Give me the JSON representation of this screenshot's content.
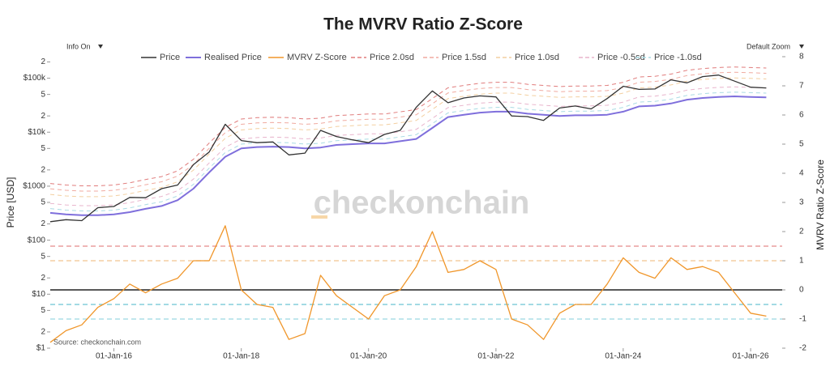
{
  "chart_data": {
    "type": "line",
    "title": "The MVRV Ratio Z-Score",
    "controls": {
      "left": "Info On",
      "right": "Default Zoom"
    },
    "ylabel": "Price [USD]",
    "y2label": "MVRV Ratio Z-Score",
    "watermark": "checkonchain",
    "source": "Source:  checkonchain.com",
    "yscale": "log",
    "x": [
      "2015-01-01",
      "2015-04-01",
      "2015-07-01",
      "2015-10-01",
      "2016-01-01",
      "2016-04-01",
      "2016-07-01",
      "2016-10-01",
      "2017-01-01",
      "2017-04-01",
      "2017-07-01",
      "2017-10-01",
      "2018-01-01",
      "2018-04-01",
      "2018-07-01",
      "2018-10-01",
      "2019-01-01",
      "2019-04-01",
      "2019-07-01",
      "2019-10-01",
      "2020-01-01",
      "2020-04-01",
      "2020-07-01",
      "2020-10-01",
      "2021-01-01",
      "2021-04-01",
      "2021-07-01",
      "2021-10-01",
      "2022-01-01",
      "2022-04-01",
      "2022-07-01",
      "2022-10-01",
      "2023-01-01",
      "2023-04-01",
      "2023-07-01",
      "2023-10-01",
      "2024-01-01",
      "2024-04-01",
      "2024-07-01",
      "2024-10-01",
      "2025-01-01",
      "2025-04-01",
      "2025-07-01",
      "2025-10-01",
      "2026-01-01",
      "2026-04-01"
    ],
    "xlim": [
      "2015-01-01",
      "2026-07-01"
    ],
    "xticks": [
      {
        "value": "2016-01-01",
        "label": "01-Jan-16"
      },
      {
        "value": "2018-01-01",
        "label": "01-Jan-18"
      },
      {
        "value": "2020-01-01",
        "label": "01-Jan-20"
      },
      {
        "value": "2022-01-01",
        "label": "01-Jan-22"
      },
      {
        "value": "2024-01-01",
        "label": "01-Jan-24"
      },
      {
        "value": "2026-01-01",
        "label": "01-Jan-26"
      }
    ],
    "ylim": [
      1,
      250000
    ],
    "yticks": [
      {
        "value": 1,
        "label": "$1"
      },
      2,
      5,
      {
        "value": 10,
        "label": "$10"
      },
      {
        "value": 20,
        "label": "2"
      },
      {
        "value": 50,
        "label": "5"
      },
      {
        "value": 100,
        "label": "$100"
      },
      {
        "value": 200,
        "label": "2"
      },
      {
        "value": 500,
        "label": "5"
      },
      {
        "value": 1000,
        "label": "$1000"
      },
      {
        "value": 2000,
        "label": "2"
      },
      {
        "value": 5000,
        "label": "5"
      },
      {
        "value": 10000,
        "label": "$10k"
      },
      {
        "value": 20000,
        "label": "2"
      },
      {
        "value": 50000,
        "label": "5"
      },
      {
        "value": 100000,
        "label": "$100k"
      },
      {
        "value": 200000,
        "label": "2"
      }
    ],
    "y2lim": [
      -2,
      8
    ],
    "y2ticks": [
      -2,
      -1,
      0,
      1,
      2,
      3,
      4,
      5,
      6,
      7,
      8
    ],
    "reference_lines": [
      {
        "value": 1.5,
        "color": "#e58a8a",
        "style": "dashed"
      },
      {
        "value": 1.0,
        "color": "#f2c48f",
        "style": "dashed"
      },
      {
        "value": 0,
        "color": "#222222",
        "style": "solid"
      },
      {
        "value": -0.5,
        "color": "#6cc4d4",
        "style": "dashed"
      },
      {
        "value": -1.0,
        "color": "#9ad8e2",
        "style": "dashed"
      }
    ],
    "series": [
      {
        "name": "Price",
        "color": "#333333",
        "style": "solid",
        "values": [
          220,
          240,
          230,
          400,
          420,
          620,
          610,
          900,
          1050,
          2500,
          4300,
          14000,
          7000,
          6400,
          6600,
          3800,
          4100,
          10800,
          8300,
          7200,
          6400,
          9100,
          10800,
          29000,
          58000,
          35000,
          43000,
          47000,
          45000,
          20000,
          19400,
          16500,
          28000,
          30500,
          27000,
          42000,
          71000,
          62000,
          63000,
          93000,
          82000,
          107000,
          114000,
          88000,
          68000,
          66000
        ]
      },
      {
        "name": "Realised Price",
        "color": "#7f6fdc",
        "style": "solid",
        "values": [
          320,
          300,
          290,
          290,
          300,
          330,
          380,
          430,
          550,
          900,
          1800,
          3500,
          5000,
          5300,
          5400,
          5300,
          5000,
          5200,
          5800,
          6000,
          6200,
          6200,
          6800,
          7500,
          12000,
          19000,
          21000,
          23000,
          24000,
          24000,
          22000,
          21000,
          20000,
          20500,
          20500,
          21000,
          24000,
          30000,
          31000,
          34000,
          40000,
          43000,
          45000,
          46000,
          45000,
          44000
        ]
      },
      {
        "name": "MVRV Z-Score",
        "color": "#f0962a",
        "style": "solid",
        "axis": "y2",
        "values": [
          -1.8,
          -1.4,
          -1.2,
          -0.6,
          -0.3,
          0.2,
          -0.1,
          0.2,
          0.4,
          1.0,
          1.0,
          2.2,
          0.0,
          -0.5,
          -0.6,
          -1.7,
          -1.5,
          0.5,
          -0.2,
          -0.6,
          -1.0,
          -0.2,
          0.0,
          0.8,
          2.0,
          0.6,
          0.7,
          1.0,
          0.7,
          -1.0,
          -1.2,
          -1.7,
          -0.8,
          -0.5,
          -0.5,
          0.2,
          1.1,
          0.6,
          0.4,
          1.1,
          0.7,
          0.8,
          0.6,
          -0.1,
          -0.8,
          -0.9
        ]
      },
      {
        "name": "Price 2.0sd",
        "color": "#e07b7b",
        "style": "dashed",
        "values": [
          1120,
          1050,
          1015,
          1015,
          1050,
          1155,
          1330,
          1505,
          1925,
          3150,
          6300,
          12250,
          17500,
          18550,
          18900,
          18550,
          17500,
          18200,
          20300,
          21000,
          21700,
          21700,
          23800,
          26250,
          42000,
          66500,
          73500,
          80500,
          84000,
          84000,
          77000,
          73500,
          70000,
          71750,
          71750,
          73500,
          84000,
          105000,
          108500,
          119000,
          140000,
          150500,
          157500,
          161000,
          157500,
          154000
        ]
      },
      {
        "name": "Price 1.5sd",
        "color": "#f0aaa0",
        "style": "dashed",
        "values": [
          896,
          840,
          812,
          812,
          840,
          924,
          1064,
          1204,
          1540,
          2520,
          5040,
          9800,
          14000,
          14840,
          15120,
          14840,
          14000,
          14560,
          16240,
          16800,
          17360,
          17360,
          19040,
          21000,
          33600,
          53200,
          58800,
          64400,
          67200,
          67200,
          61600,
          58800,
          56000,
          57400,
          57400,
          58800,
          67200,
          84000,
          86800,
          95200,
          112000,
          120400,
          126000,
          128800,
          126000,
          123200
        ]
      },
      {
        "name": "Price 1.0sd",
        "color": "#f3cfa0",
        "style": "dashed",
        "values": [
          704,
          660,
          638,
          638,
          660,
          726,
          836,
          946,
          1210,
          1980,
          3960,
          7700,
          11000,
          11660,
          11880,
          11660,
          11000,
          11440,
          12760,
          13200,
          13640,
          13640,
          14960,
          16500,
          26400,
          41800,
          46200,
          50600,
          52800,
          52800,
          48400,
          46200,
          44000,
          45100,
          45100,
          46200,
          52800,
          66000,
          68200,
          74800,
          88000,
          94600,
          99000,
          101200,
          99000,
          96800
        ]
      },
      {
        "name": "Price -0.5sd",
        "color": "#e8b4cc",
        "style": "dashed",
        "values": [
          480,
          450,
          435,
          435,
          450,
          495,
          570,
          645,
          825,
          1350,
          2700,
          5250,
          7500,
          7950,
          8100,
          7950,
          7500,
          7800,
          8700,
          9000,
          9300,
          9300,
          10200,
          11250,
          18000,
          28500,
          31500,
          34500,
          36000,
          36000,
          33000,
          31500,
          30000,
          30750,
          30750,
          31500,
          36000,
          45000,
          46500,
          51000,
          60000,
          64500,
          67500,
          69000,
          67500,
          66000
        ]
      },
      {
        "name": "Price -1.0sd",
        "color": "#a9dbe3",
        "style": "dashed",
        "values": [
          384,
          360,
          348,
          348,
          360,
          396,
          456,
          516,
          660,
          1080,
          2160,
          4200,
          6000,
          6360,
          6480,
          6360,
          6000,
          6240,
          6960,
          7200,
          7440,
          7440,
          8160,
          9000,
          14400,
          22800,
          25200,
          27600,
          28800,
          28800,
          26400,
          25200,
          24000,
          24600,
          24600,
          25200,
          28800,
          36000,
          37200,
          40800,
          48000,
          51600,
          54000,
          55200,
          54000,
          52800
        ]
      }
    ]
  }
}
